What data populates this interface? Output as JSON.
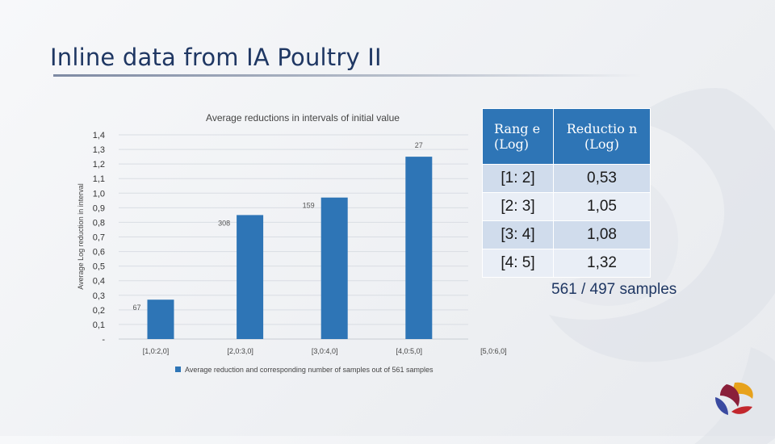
{
  "slide": {
    "title": "Inline data from IA Poultry II"
  },
  "chart_data": {
    "type": "bar",
    "title": "Average reductions in intervals of initial value",
    "xlabel": "",
    "ylabel": "Average Log reduction in interval",
    "categories": [
      "[1,0:2,0]",
      "[2,0:3,0]",
      "[3,0:4,0]",
      "[4,0:5,0]",
      "[5,0:6,0]"
    ],
    "series": [
      {
        "name": "Average reduction and corresponding number of samples out of 561 samples",
        "values": [
          0.27,
          0.85,
          0.97,
          1.25,
          null
        ],
        "data_labels": [
          "67",
          "308",
          "159",
          "27",
          ""
        ]
      }
    ],
    "y_tick_labels": [
      "-",
      "0,1",
      "0,2",
      "0,3",
      "0,4",
      "0,5",
      "0,6",
      "0,7",
      "0,8",
      "0,9",
      "1,0",
      "1,1",
      "1,2",
      "1,3",
      "1,4"
    ],
    "ylim": [
      0,
      1.4
    ],
    "grid": true,
    "legend_position": "bottom",
    "bar_color": "#2e75b6"
  },
  "table": {
    "headers": {
      "range": "Rang e (Log)",
      "reduction": "Reductio n (Log)"
    },
    "rows": [
      {
        "range": "[1: 2]",
        "reduction": "0,53"
      },
      {
        "range": "[2: 3]",
        "reduction": "1,05"
      },
      {
        "range": "[3: 4]",
        "reduction": "1,08"
      },
      {
        "range": "[4: 5]",
        "reduction": "1,32"
      }
    ],
    "header_color": "#2e75b6"
  },
  "footnote": {
    "samples": "561 / 497 samples"
  },
  "icons": {
    "logo": "poultry-swirl-logo"
  }
}
